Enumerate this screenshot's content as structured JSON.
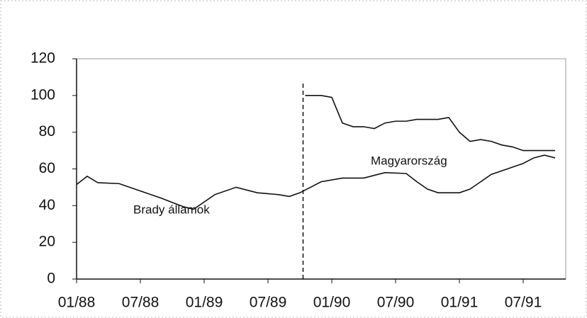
{
  "chart_data": {
    "type": "line",
    "series": [
      {
        "name": "Brady államok",
        "color": "#111111",
        "x": [
          0,
          1,
          2,
          4,
          6,
          8,
          10,
          11,
          13,
          15,
          17,
          19,
          20,
          21,
          22,
          23,
          25,
          27,
          29,
          31,
          32,
          33,
          34,
          36,
          37,
          38,
          39,
          40,
          42,
          43,
          44,
          45
        ],
        "values": [
          51.5,
          56,
          52.5,
          52,
          48,
          44,
          39.5,
          38,
          46,
          50,
          47,
          46,
          45,
          47,
          50,
          53,
          55,
          55,
          58,
          57.5,
          53,
          49,
          47,
          47,
          49,
          53,
          57,
          59,
          63,
          66,
          67.5,
          66
        ]
      },
      {
        "name": "Magyarország",
        "color": "#111111",
        "x": [
          21.5,
          23,
          24,
          25,
          26,
          27,
          28,
          29,
          30,
          31,
          32,
          34,
          35,
          36,
          37,
          38,
          39,
          40,
          41,
          42,
          43,
          45
        ],
        "values": [
          100,
          100,
          99,
          85,
          83,
          83,
          82,
          85,
          86,
          86,
          87,
          87,
          88,
          80,
          75,
          76,
          75,
          73,
          72,
          70,
          70,
          70
        ]
      }
    ],
    "vline_x": 21.3,
    "xlim": [
      0,
      45
    ],
    "xticks": [
      {
        "value": 0,
        "label": "01/88"
      },
      {
        "value": 6,
        "label": "07/88"
      },
      {
        "value": 12,
        "label": "01/89"
      },
      {
        "value": 18,
        "label": "07/89"
      },
      {
        "value": 24,
        "label": "01/90"
      },
      {
        "value": 30,
        "label": "07/90"
      },
      {
        "value": 36,
        "label": "01/91"
      },
      {
        "value": 42,
        "label": "07/91"
      }
    ],
    "ylim": [
      0,
      120
    ],
    "yticks": [
      0,
      20,
      40,
      60,
      80,
      100,
      120
    ],
    "grid": false
  }
}
